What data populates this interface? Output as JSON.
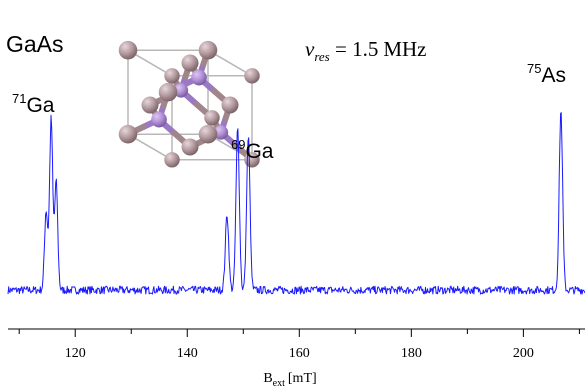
{
  "chart_data": {
    "type": "line",
    "title": "",
    "sample_label": "GaAs",
    "condition_label": {
      "symbol": "ν",
      "subscript": "res",
      "equals": " = ",
      "value": "1.5",
      "unit": "MHz"
    },
    "xlabel": {
      "base": "B",
      "subscript": "ext",
      "unit": "[mT]"
    },
    "ylabel": "",
    "xlim": [
      108,
      211
    ],
    "ylim": [
      0,
      1
    ],
    "xticks": [
      120,
      140,
      160,
      180,
      200
    ],
    "xticks_minor": [
      110,
      130,
      150,
      170,
      190,
      210
    ],
    "grid": false,
    "series_color": "#1a1aff",
    "baseline_level": 0.055,
    "noise_amplitude": 0.022,
    "peaks": [
      {
        "x": 114.8,
        "height": 0.44,
        "width": 0.28
      },
      {
        "x": 115.7,
        "height": 0.95,
        "width": 0.28
      },
      {
        "x": 116.6,
        "height": 0.6,
        "width": 0.28
      },
      {
        "x": 147.1,
        "height": 0.42,
        "width": 0.3
      },
      {
        "x": 149.0,
        "height": 0.9,
        "width": 0.3
      },
      {
        "x": 150.9,
        "height": 0.85,
        "width": 0.3
      },
      {
        "x": 206.7,
        "height": 1.0,
        "width": 0.3
      }
    ],
    "annotations": [
      {
        "mass": "71",
        "element": "Ga",
        "x": 115.7
      },
      {
        "mass": "69",
        "element": "Ga",
        "x": 149.0
      },
      {
        "mass": "75",
        "element": "As",
        "x": 206.7
      }
    ]
  },
  "crystal": {
    "ga_color": "#b49ba0",
    "as_color": "#b28fd6",
    "cage_color": "#b8b8b8"
  }
}
